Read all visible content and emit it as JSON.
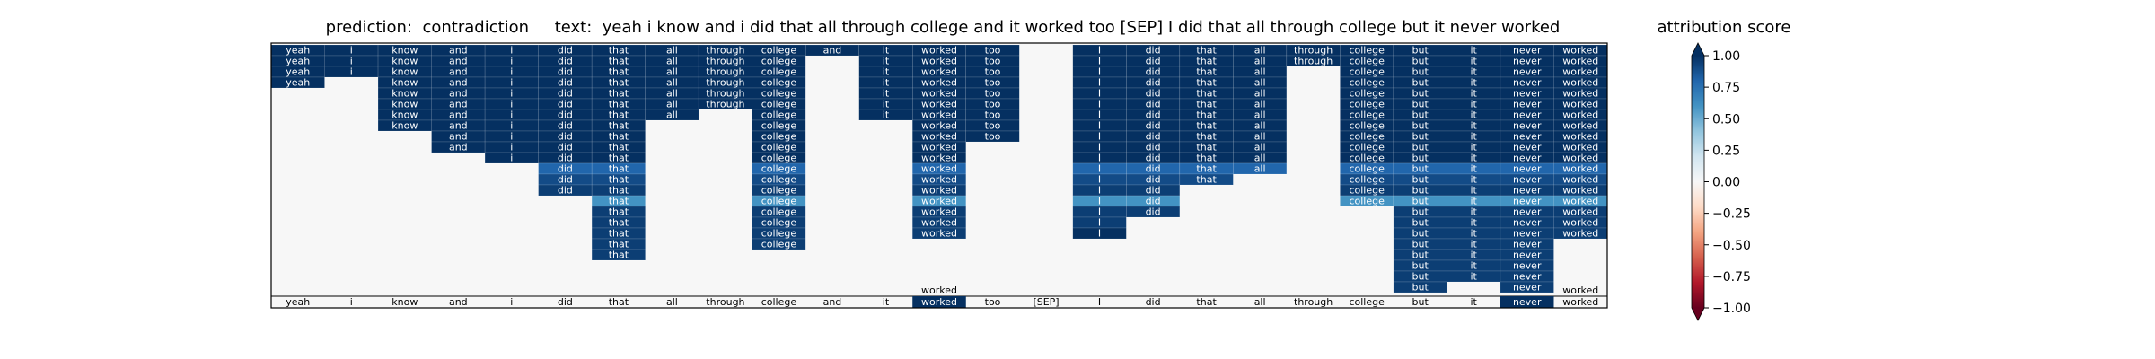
{
  "chart_data": {
    "type": "heatmap",
    "title": "prediction:  contradiction     text:  yeah i know and i did that all through college and it worked too [SEP] I did that all through college but it never worked",
    "prediction_label": "prediction:",
    "prediction_value": "contradiction",
    "text_label": "text:",
    "text_value": "yeah i know and i did that all through college and it worked too [SEP] I did that all through college but it never worked",
    "tokens": [
      "yeah",
      "i",
      "know",
      "and",
      "i",
      "did",
      "that",
      "all",
      "through",
      "college",
      "and",
      "it",
      "worked",
      "too",
      "[SEP]",
      "I",
      "did",
      "that",
      "all",
      "through",
      "college",
      "but",
      "it",
      "never",
      "worked"
    ],
    "heatmap_text_color": "#ffffff",
    "highlighted_token_indices": [
      12,
      23
    ],
    "columns": [
      {
        "token": "yeah",
        "cells": [
          1.0,
          1.0,
          1.0,
          1.0
        ]
      },
      {
        "token": "i",
        "cells": [
          1.0,
          1.0,
          1.0
        ]
      },
      {
        "token": "know",
        "cells": [
          1.0,
          1.0,
          1.0,
          1.0,
          1.0,
          1.0,
          1.0,
          1.0
        ]
      },
      {
        "token": "and",
        "cells": [
          1.0,
          1.0,
          1.0,
          1.0,
          1.0,
          1.0,
          1.0,
          1.0,
          1.0,
          1.0
        ]
      },
      {
        "token": "i",
        "cells": [
          1.0,
          1.0,
          1.0,
          1.0,
          1.0,
          1.0,
          1.0,
          1.0,
          1.0,
          1.0,
          1.0
        ]
      },
      {
        "token": "did",
        "cells": [
          1.0,
          1.0,
          1.0,
          1.0,
          1.0,
          1.0,
          1.0,
          1.0,
          1.0,
          1.0,
          1.0,
          0.8,
          0.9,
          0.95
        ]
      },
      {
        "token": "that",
        "cells": [
          1.0,
          1.0,
          1.0,
          1.0,
          1.0,
          1.0,
          1.0,
          1.0,
          1.0,
          1.0,
          1.0,
          0.8,
          0.9,
          0.95,
          0.6,
          0.95,
          0.95,
          0.95,
          0.95,
          0.95
        ]
      },
      {
        "token": "all",
        "cells": [
          1.0,
          1.0,
          1.0,
          1.0,
          1.0,
          1.0,
          1.0
        ]
      },
      {
        "token": "through",
        "cells": [
          1.0,
          1.0,
          1.0,
          1.0,
          1.0,
          1.0
        ]
      },
      {
        "token": "college",
        "cells": [
          1.0,
          1.0,
          1.0,
          1.0,
          1.0,
          1.0,
          1.0,
          1.0,
          1.0,
          1.0,
          1.0,
          0.8,
          0.9,
          0.95,
          0.6,
          0.95,
          0.95,
          0.95,
          0.95
        ]
      },
      {
        "token": "and",
        "cells": [
          1.0
        ]
      },
      {
        "token": "it",
        "cells": [
          1.0,
          1.0,
          1.0,
          1.0,
          1.0,
          1.0,
          1.0
        ]
      },
      {
        "token": "worked",
        "cells": [
          1.0,
          1.0,
          1.0,
          1.0,
          1.0,
          1.0,
          1.0,
          1.0,
          1.0,
          1.0,
          1.0,
          0.8,
          0.9,
          0.95,
          0.6,
          0.95,
          0.95,
          0.95
        ]
      },
      {
        "token": "too",
        "cells": [
          1.0,
          1.0,
          1.0,
          1.0,
          1.0,
          1.0,
          1.0,
          1.0,
          1.0
        ]
      },
      {
        "token": "[SEP]",
        "cells": []
      },
      {
        "token": "I",
        "cells": [
          1.0,
          1.0,
          1.0,
          1.0,
          1.0,
          1.0,
          1.0,
          1.0,
          1.0,
          1.0,
          1.0,
          0.8,
          0.9,
          0.95,
          0.6,
          0.95,
          0.95,
          1.0
        ]
      },
      {
        "token": "did",
        "cells": [
          1.0,
          1.0,
          1.0,
          1.0,
          1.0,
          1.0,
          1.0,
          1.0,
          1.0,
          1.0,
          1.0,
          0.8,
          0.9,
          0.95,
          0.6,
          0.95
        ]
      },
      {
        "token": "that",
        "cells": [
          1.0,
          1.0,
          1.0,
          1.0,
          1.0,
          1.0,
          1.0,
          1.0,
          1.0,
          1.0,
          1.0,
          0.8,
          0.9
        ]
      },
      {
        "token": "all",
        "cells": [
          1.0,
          1.0,
          1.0,
          1.0,
          1.0,
          1.0,
          1.0,
          1.0,
          1.0,
          1.0,
          1.0,
          0.8
        ]
      },
      {
        "token": "through",
        "cells": [
          1.0,
          1.0
        ]
      },
      {
        "token": "college",
        "cells": [
          1.0,
          1.0,
          1.0,
          1.0,
          1.0,
          1.0,
          1.0,
          1.0,
          1.0,
          1.0,
          1.0,
          0.8,
          0.9,
          0.95,
          0.6
        ]
      },
      {
        "token": "but",
        "cells": [
          1.0,
          1.0,
          1.0,
          1.0,
          1.0,
          1.0,
          1.0,
          1.0,
          1.0,
          1.0,
          1.0,
          0.8,
          0.9,
          0.95,
          0.6,
          0.95,
          0.95,
          0.95,
          0.95,
          0.95,
          0.95,
          0.95,
          0.95
        ]
      },
      {
        "token": "it",
        "cells": [
          1.0,
          1.0,
          1.0,
          1.0,
          1.0,
          1.0,
          1.0,
          1.0,
          1.0,
          1.0,
          1.0,
          0.8,
          0.9,
          0.95,
          0.6,
          0.95,
          0.95,
          0.95,
          0.95,
          0.95,
          0.95,
          0.95
        ]
      },
      {
        "token": "never",
        "cells": [
          1.0,
          1.0,
          1.0,
          1.0,
          1.0,
          1.0,
          1.0,
          1.0,
          1.0,
          1.0,
          1.0,
          0.8,
          0.9,
          0.95,
          0.6,
          0.95,
          0.95,
          0.95,
          0.95,
          0.95,
          0.95,
          0.95,
          0.95
        ]
      },
      {
        "token": "worked",
        "cells": [
          1.0,
          1.0,
          1.0,
          1.0,
          1.0,
          1.0,
          1.0,
          1.0,
          1.0,
          1.0,
          1.0,
          0.8,
          0.9,
          0.95,
          0.6,
          0.95,
          0.95,
          0.95
        ]
      }
    ],
    "floating_labels": [
      {
        "token_index": 12,
        "text": "worked"
      },
      {
        "token_index": 24,
        "text": "worked"
      }
    ],
    "colorbar": {
      "title": "attribution score",
      "range": [
        -1.0,
        1.0
      ],
      "ticks": [
        1.0,
        0.75,
        0.5,
        0.25,
        0.0,
        -0.25,
        -0.5,
        -0.75,
        -1.0
      ],
      "tick_labels": [
        "1.00",
        "0.75",
        "0.50",
        "0.25",
        "0.00",
        "−0.25",
        "−0.50",
        "−0.75",
        "−1.00"
      ],
      "colormap": "RdBu",
      "stops": [
        "#67001f",
        "#b2182b",
        "#d6604d",
        "#f4a582",
        "#fddbc7",
        "#f7f7f7",
        "#d1e5f0",
        "#92c5de",
        "#4393c3",
        "#2166ac",
        "#053061"
      ]
    }
  }
}
